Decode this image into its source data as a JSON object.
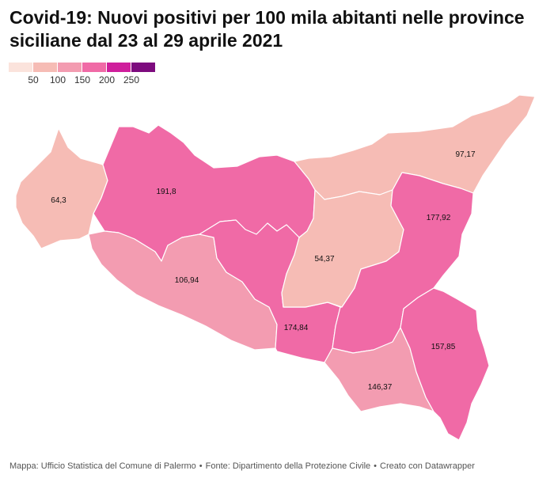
{
  "title": "Covid-19: Nuovi positivi per 100 mila abitanti nelle province siciliane dal 23 al 29 aprile  2021",
  "legend": {
    "colors": [
      "#fbe3dc",
      "#f6bcb5",
      "#f39cb1",
      "#f06aa6",
      "#cf1f9c",
      "#7d0b7e"
    ],
    "ticks": [
      "50",
      "100",
      "150",
      "200",
      "250"
    ]
  },
  "map": {
    "provinces": [
      {
        "value_label": "64,3",
        "value": 64.3,
        "color": "#f6bcb5"
      },
      {
        "value_label": "191,8",
        "value": 191.8,
        "color": "#f06aa6"
      },
      {
        "value_label": "97,17",
        "value": 97.17,
        "color": "#f6bcb5"
      },
      {
        "value_label": "106,94",
        "value": 106.94,
        "color": "#f39cb1"
      },
      {
        "value_label": "54,37",
        "value": 54.37,
        "color": "#f6bcb5"
      },
      {
        "value_label": "177,92",
        "value": 177.92,
        "color": "#f06aa6"
      },
      {
        "value_label": "174,84",
        "value": 174.84,
        "color": "#f06aa6"
      },
      {
        "value_label": "157,85",
        "value": 157.85,
        "color": "#f06aa6"
      },
      {
        "value_label": "146,37",
        "value": 146.37,
        "color": "#f39cb1"
      }
    ]
  },
  "footer": {
    "map_credit": "Mappa: Ufficio Statistica del Comune di Palermo",
    "source": "Fonte: Dipartimento della Protezione Civile",
    "tool": "Creato con Datawrapper",
    "separator": "•"
  }
}
